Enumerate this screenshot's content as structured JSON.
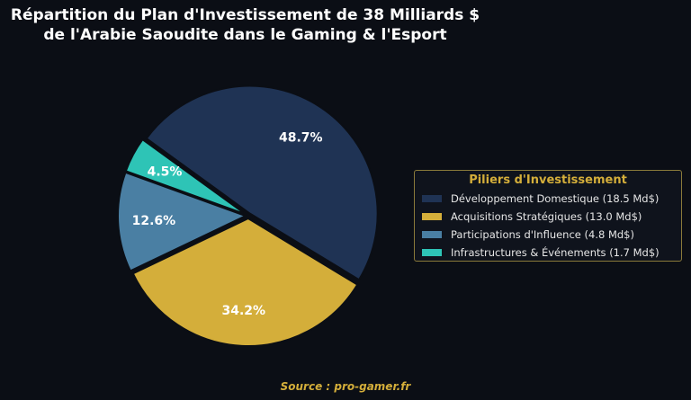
{
  "title_line1": "Répartition du Plan d'Investissement de 38 Milliards $",
  "title_line2": "de l'Arabie Saoudite dans le Gaming & l'Esport",
  "legend": {
    "title": "Piliers d'Investissement",
    "items": [
      "Développement Domestique (18.5 Md$)",
      "Acquisitions Stratégiques (13.0 Md$)",
      "Participations d'Influence (4.8 Md$)",
      "Infrastructures & Événements (1.7 Md$)"
    ]
  },
  "source": "Source : pro-gamer.fr",
  "chart_data": {
    "type": "pie",
    "title": "Répartition du Plan d'Investissement de 38 Milliards $ de l'Arabie Saoudite dans le Gaming & l'Esport",
    "legend_placement": "right",
    "slices": [
      {
        "label": "Développement Domestique (18.5 Md$)",
        "value": 18.5,
        "percent_label": "48.7%",
        "color": "#1f3354"
      },
      {
        "label": "Acquisitions Stratégiques (13.0 Md$)",
        "value": 13.0,
        "percent_label": "34.2%",
        "color": "#d4ae3a"
      },
      {
        "label": "Participations d'Influence (4.8 Md$)",
        "value": 4.8,
        "percent_label": "12.6%",
        "color": "#4a7fa3"
      },
      {
        "label": "Infrastructures & Événements (1.7 Md$)",
        "value": 1.7,
        "percent_label": "4.5%",
        "color": "#2ec4b6"
      }
    ]
  }
}
